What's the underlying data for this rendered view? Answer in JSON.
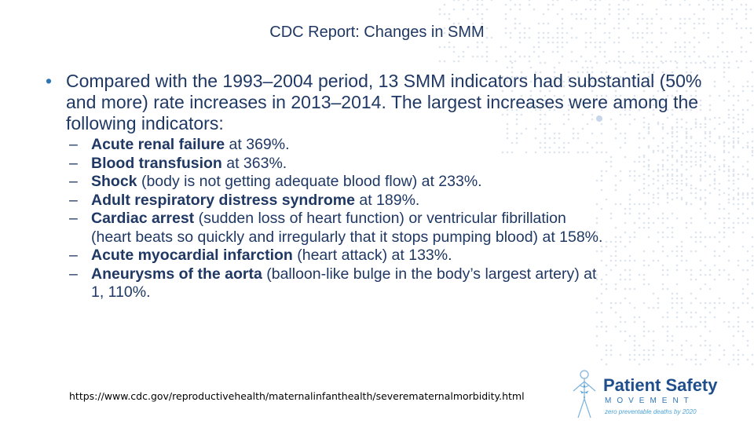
{
  "slide": {
    "title": "CDC Report: Changes in SMM",
    "main_bullet": "Compared with the 1993–2004 period, 13 SMM indicators had substantial (50% and more) rate increases in 2013–2014. The largest increases were among the following indicators:",
    "bullet_symbol": "•",
    "dash_symbol": "–",
    "items": [
      {
        "bold": "Acute renal failure",
        "rest": " at 369%.",
        "cont": ""
      },
      {
        "bold": "Blood transfusion",
        "rest": " at 363%.",
        "cont": ""
      },
      {
        "bold": "Shock",
        "rest": " (body is not getting adequate blood flow) at 233%.",
        "cont": ""
      },
      {
        "bold": "Adult respiratory distress syndrome",
        "rest": " at 189%.",
        "cont": ""
      },
      {
        "bold": "Cardiac arrest",
        "rest": " (sudden loss of heart function) or ventricular fibrillation",
        "cont": "(heart beats so quickly and irregularly that it stops pumping blood) at 158%."
      },
      {
        "bold": "Acute myocardial infarction",
        "rest": " (heart attack) at 133%.",
        "cont": ""
      },
      {
        "bold": "Aneurysms of the aorta",
        "rest": " (balloon-like bulge in the body’s largest artery) at",
        "cont": "1, 110%."
      }
    ],
    "source_url": "https://www.cdc.gov/reproductivehealth/maternalinfanthealth/severematernalmorbidity.html"
  },
  "logo": {
    "line1": "Patient Safety",
    "line2": "MOVEMENT",
    "line3": "zero preventable deaths by 2020",
    "icon": "human-figure-icon"
  },
  "colors": {
    "text": "#1f3864",
    "accent": "#2e75b6",
    "map_dots": "#dde5ee"
  }
}
